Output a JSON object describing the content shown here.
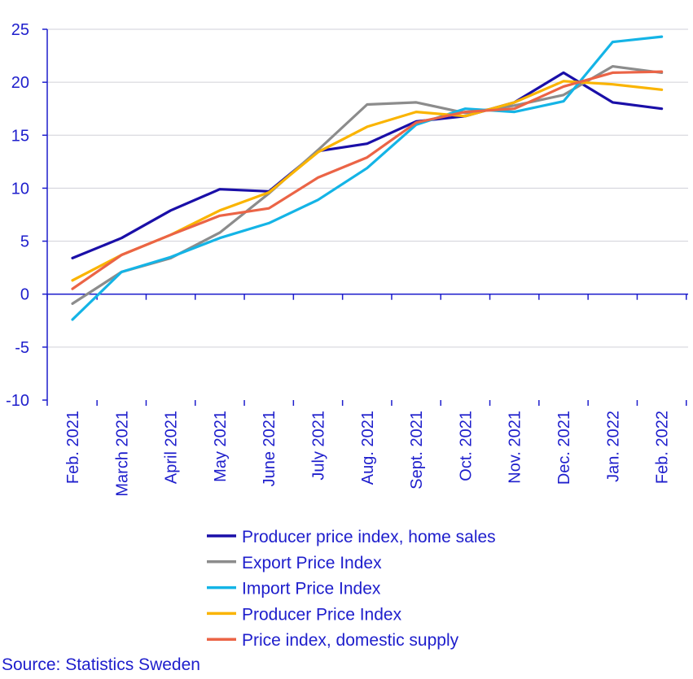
{
  "chart_data": {
    "type": "line",
    "title": "",
    "xlabel": "",
    "ylabel": "",
    "ylim": [
      -10,
      25
    ],
    "yticks": [
      25,
      20,
      15,
      10,
      5,
      0,
      -5,
      -10
    ],
    "grid": true,
    "legend_position": "bottom",
    "categories": [
      "Feb. 2021",
      "March 2021",
      "April 2021",
      "May 2021",
      "June 2021",
      "July 2021",
      "Aug. 2021",
      "Sept. 2021",
      "Oct. 2021",
      "Nov. 2021",
      "Dec. 2021",
      "Jan. 2022",
      "Feb. 2022"
    ],
    "series": [
      {
        "name": "Producer price index, home sales",
        "color": "#1a0fa8",
        "values": [
          3.4,
          5.3,
          7.9,
          9.9,
          9.7,
          13.5,
          14.2,
          16.3,
          16.8,
          18.1,
          20.9,
          18.1,
          17.5
        ]
      },
      {
        "name": "Export Price Index",
        "color": "#8c8c8c",
        "values": [
          -0.9,
          2.1,
          3.4,
          5.8,
          9.5,
          13.6,
          17.9,
          18.1,
          17.1,
          17.8,
          18.8,
          21.5,
          20.9
        ]
      },
      {
        "name": "Import Price Index",
        "color": "#14b4e6",
        "values": [
          -2.4,
          2.1,
          3.5,
          5.3,
          6.7,
          8.9,
          11.9,
          16.0,
          17.5,
          17.2,
          18.2,
          23.8,
          24.3
        ]
      },
      {
        "name": "Producer Price Index",
        "color": "#fab400",
        "values": [
          1.3,
          3.7,
          5.6,
          7.9,
          9.6,
          13.4,
          15.8,
          17.2,
          16.8,
          18.1,
          20.1,
          19.8,
          19.3
        ]
      },
      {
        "name": "Price index, domestic supply",
        "color": "#eb6446",
        "values": [
          0.5,
          3.7,
          5.6,
          7.4,
          8.1,
          11.0,
          12.9,
          16.2,
          17.2,
          17.5,
          19.6,
          20.9,
          21.0
        ]
      }
    ]
  },
  "source": "Source: Statistics Sweden"
}
